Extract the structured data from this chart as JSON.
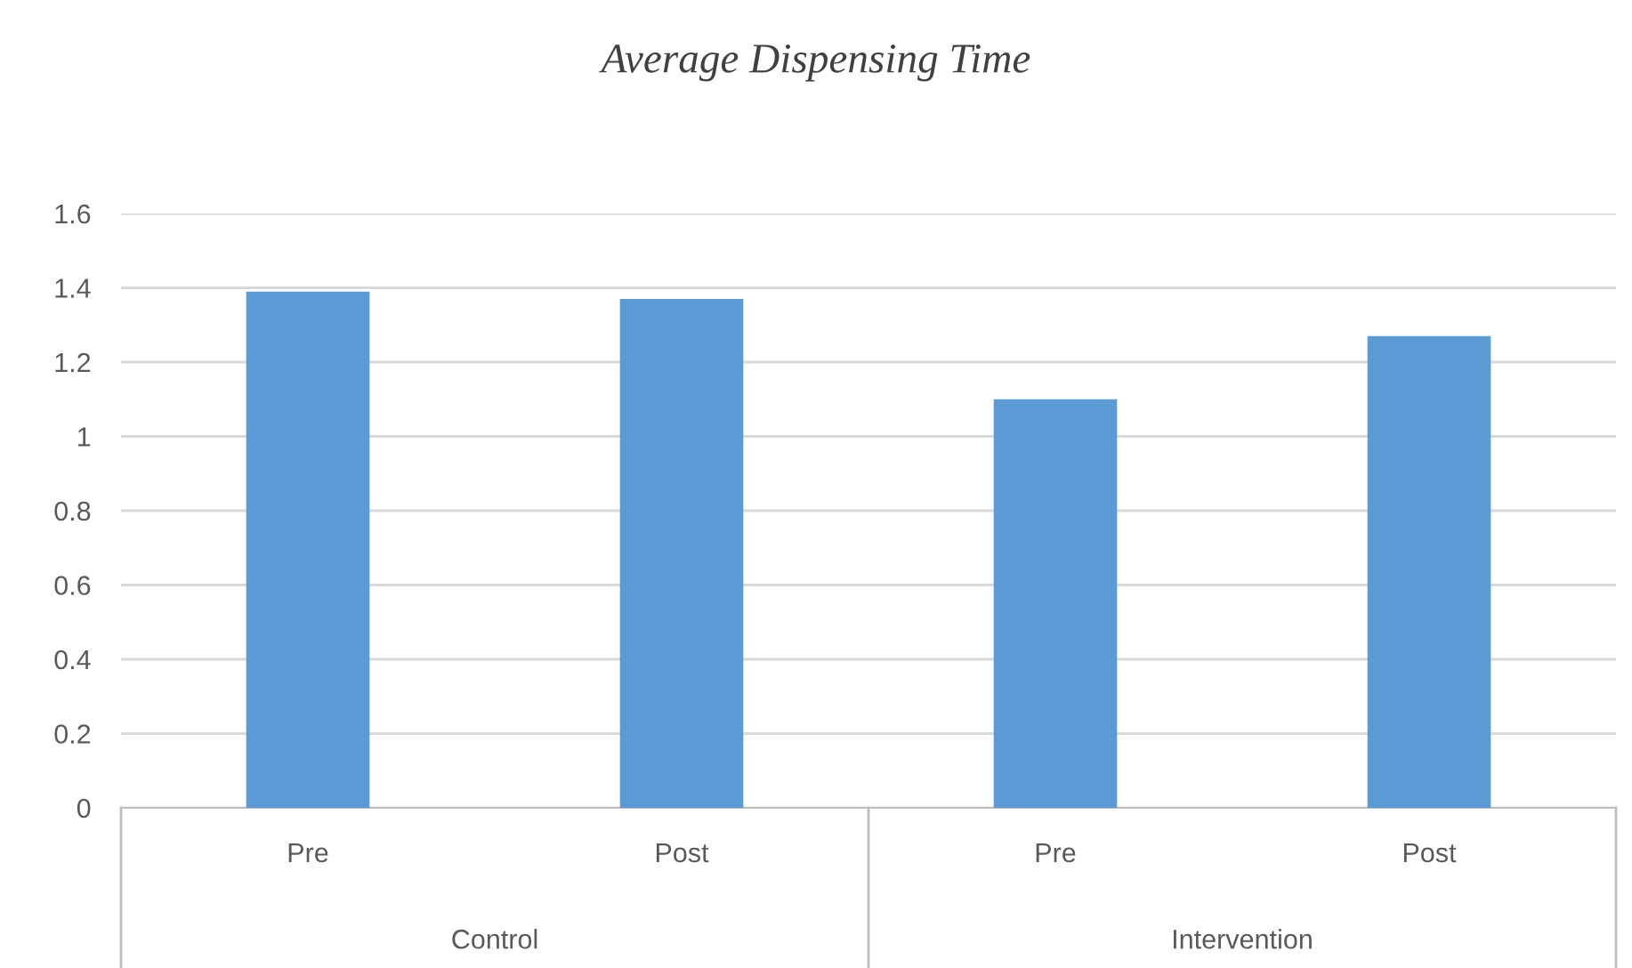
{
  "chart_data": {
    "type": "bar",
    "title": "Average Dispensing Time",
    "categories": [
      "Pre",
      "Post",
      "Pre",
      "Post"
    ],
    "values": [
      1.39,
      1.37,
      1.1,
      1.27
    ],
    "color": "#5b9bd5",
    "annotations": [
      "Control",
      "Intervention"
    ],
    "ylim": [
      0,
      1.6
    ],
    "yticks": [
      0,
      0.2,
      0.4,
      0.6,
      0.8,
      1,
      1.2,
      1.4,
      1.6
    ],
    "grid": "y"
  }
}
